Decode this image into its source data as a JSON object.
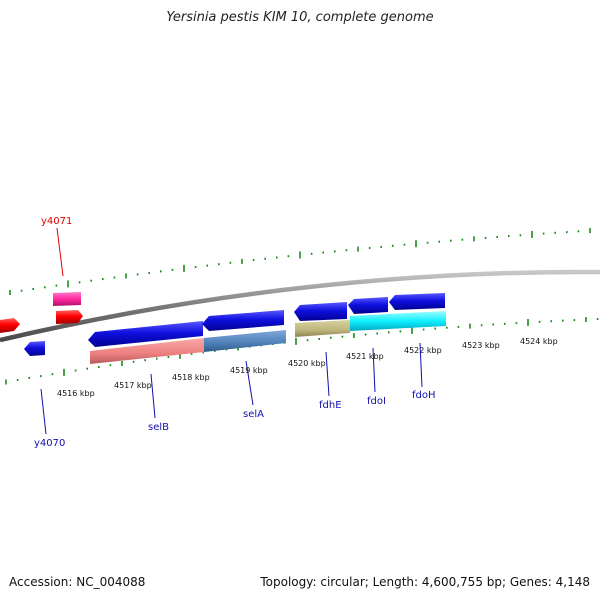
{
  "title": "Yersinia pestis KIM 10, complete genome",
  "footer": {
    "accession": "Accession: NC_004088",
    "topology": "Topology: circular; Length: 4,600,755 bp; Genes: 4,148"
  },
  "colors": {
    "backbone": "#8c8c8c",
    "tick": "#1a8c1a",
    "forward_label": "#e00000",
    "reverse_label": "#1010b0",
    "blue_gene": "#1010e0",
    "red_gene": "#ff0000",
    "pink_gene": "#ff2aa0"
  },
  "scale_labels": [
    "4516 kbp",
    "4517 kbp",
    "4518 kbp",
    "4519 kbp",
    "4520 kbp",
    "4521 kbp",
    "4522 kbp",
    "4523 kbp",
    "4524 kbp"
  ],
  "gene_labels": [
    {
      "id": "y4071",
      "text": "y4071",
      "strand": "forward"
    },
    {
      "id": "y4070",
      "text": "y4070",
      "strand": "reverse"
    },
    {
      "id": "selB",
      "text": "selB",
      "strand": "reverse"
    },
    {
      "id": "selA",
      "text": "selA",
      "strand": "reverse"
    },
    {
      "id": "fdhE",
      "text": "fdhE",
      "strand": "reverse"
    },
    {
      "id": "fdoI",
      "text": "fdoI",
      "strand": "reverse"
    },
    {
      "id": "fdoH",
      "text": "fdoH",
      "strand": "reverse"
    }
  ]
}
